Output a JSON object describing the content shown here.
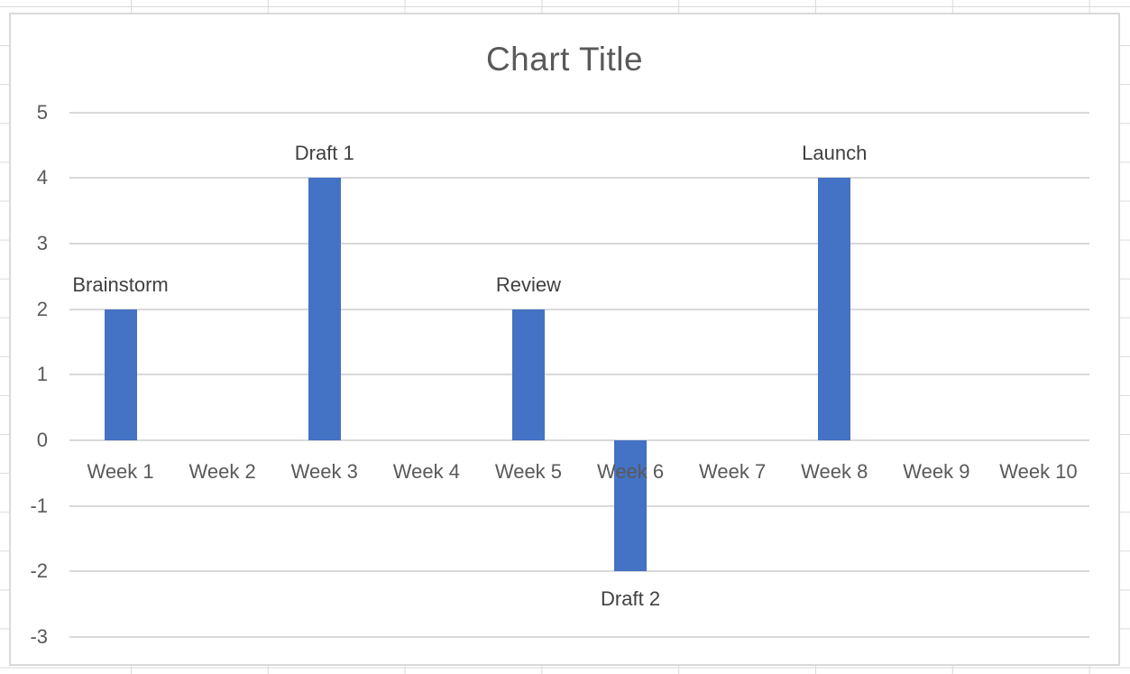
{
  "chart_data": {
    "type": "bar",
    "title": "Chart Title",
    "categories": [
      "Week 1",
      "Week 2",
      "Week 3",
      "Week 4",
      "Week 5",
      "Week 6",
      "Week 7",
      "Week 8",
      "Week 9",
      "Week 10"
    ],
    "values": [
      2,
      null,
      4,
      null,
      2,
      -2,
      null,
      4,
      null,
      null
    ],
    "bar_labels": [
      "Brainstorm",
      null,
      "Draft 1",
      null,
      "Review",
      "Draft 2",
      null,
      "Launch",
      null,
      null
    ],
    "xlabel": "",
    "ylabel": "",
    "ylim": [
      -3,
      5
    ],
    "yticks": [
      5,
      4,
      3,
      2,
      1,
      0,
      -1,
      -2,
      -3
    ],
    "grid": true,
    "legend": "none",
    "colors": {
      "bar": "#4472c4",
      "gridline": "#d9d9d9",
      "chart_border": "#d9d9d9",
      "title_text": "#595959",
      "axis_text": "#595959",
      "data_label_text": "#404040",
      "spreadsheet_gridline": "#dadada"
    }
  }
}
